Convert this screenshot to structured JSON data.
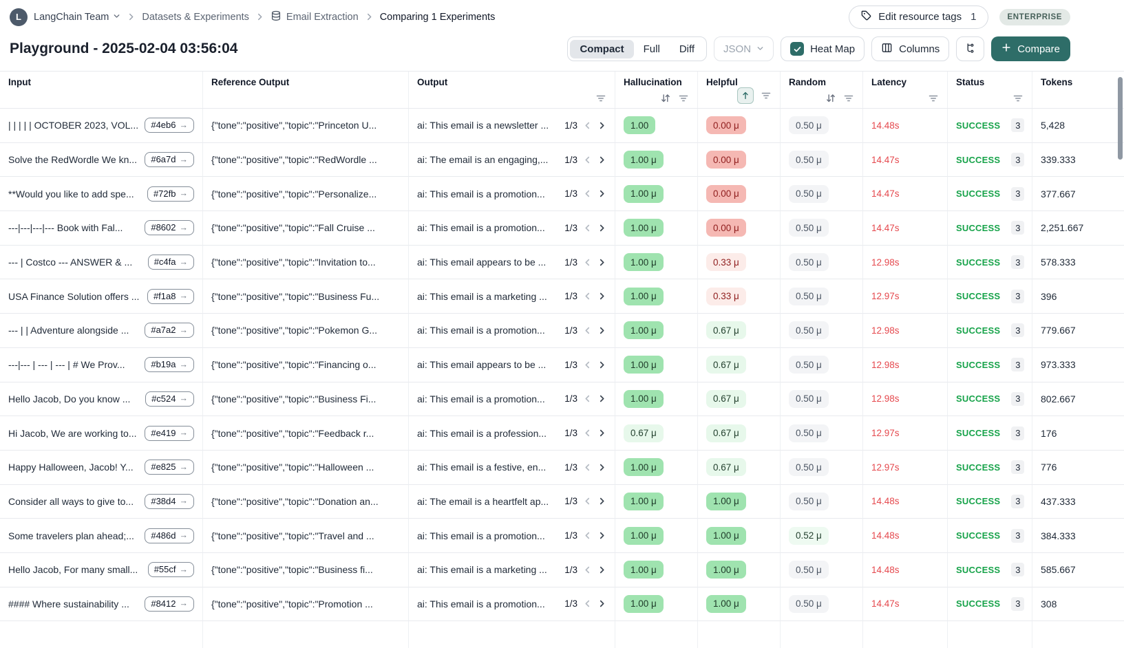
{
  "breadcrumb": {
    "team": "LangChain Team",
    "items": [
      "Datasets & Experiments",
      "Email Extraction",
      "Comparing 1 Experiments"
    ]
  },
  "header": {
    "edit_tags_label": "Edit resource tags",
    "edit_tags_count": "1",
    "enterprise_badge": "ENTERPRISE",
    "title": "Playground - 2025-02-04 03:56:04"
  },
  "toolbar": {
    "view_modes": [
      "Compact",
      "Full",
      "Diff"
    ],
    "active_view_mode": "Compact",
    "format_dropdown": "JSON",
    "heatmap_label": "Heat Map",
    "heatmap_checked": true,
    "columns_label": "Columns",
    "compare_label": "Compare"
  },
  "colors": {
    "accent_teal": "#2e6d68",
    "success_green": "#17a34a",
    "latency_red": "#e5484d",
    "heat_green": "#9fe3af",
    "heat_light_green": "#e7f8eb",
    "heat_red": "#f5b8b3",
    "heat_light_red": "#fcece9",
    "neutral_badge": "#f3f4f6",
    "enterprise_bg": "#e3e9e6"
  },
  "table": {
    "pagination_label": "1/3",
    "columns": [
      {
        "label": "Input",
        "icons": []
      },
      {
        "label": "Reference Output",
        "icons": []
      },
      {
        "label": "Output",
        "icons": [
          "filter-icon"
        ]
      },
      {
        "label": "Hallucination",
        "icons": [
          "sort-icon",
          "filter-icon"
        ]
      },
      {
        "label": "Helpful",
        "icons": [
          "sort-asc-active-icon",
          "filter-icon"
        ]
      },
      {
        "label": "Random",
        "icons": [
          "sort-icon",
          "filter-icon"
        ]
      },
      {
        "label": "Latency",
        "icons": [
          "filter-icon"
        ]
      },
      {
        "label": "Status",
        "icons": [
          "filter-icon"
        ]
      },
      {
        "label": "Tokens",
        "icons": []
      }
    ],
    "rows": [
      {
        "input": "| | | | | OCTOBER 2023, VOL...",
        "id": "#4eb6",
        "reference": "{\"tone\":\"positive\",\"topic\":\"Princeton U...",
        "output": "ai: This email is a newsletter ...",
        "hallucination": {
          "value": "1.00",
          "tone": "green"
        },
        "helpful": {
          "value": "0.00 μ",
          "tone": "red"
        },
        "random": {
          "value": "0.50 μ",
          "tone": "gray"
        },
        "latency": "14.48s",
        "status": "SUCCESS",
        "status_count": "3",
        "tokens": "5,428"
      },
      {
        "input": "Solve the RedWordle We kn...",
        "id": "#6a7d",
        "reference": "{\"tone\":\"positive\",\"topic\":\"RedWordle ...",
        "output": "ai: The email is an engaging,...",
        "hallucination": {
          "value": "1.00 μ",
          "tone": "green"
        },
        "helpful": {
          "value": "0.00 μ",
          "tone": "red"
        },
        "random": {
          "value": "0.50 μ",
          "tone": "gray"
        },
        "latency": "14.47s",
        "status": "SUCCESS",
        "status_count": "3",
        "tokens": "339.333"
      },
      {
        "input": "**Would you like to add spe...",
        "id": "#72fb",
        "reference": "{\"tone\":\"positive\",\"topic\":\"Personalize...",
        "output": "ai: This email is a promotion...",
        "hallucination": {
          "value": "1.00 μ",
          "tone": "green"
        },
        "helpful": {
          "value": "0.00 μ",
          "tone": "red"
        },
        "random": {
          "value": "0.50 μ",
          "tone": "gray"
        },
        "latency": "14.47s",
        "status": "SUCCESS",
        "status_count": "3",
        "tokens": "377.667"
      },
      {
        "input": "---|---|---|--- Book with Fal...",
        "id": "#8602",
        "reference": "{\"tone\":\"positive\",\"topic\":\"Fall Cruise ...",
        "output": "ai: This email is a promotion...",
        "hallucination": {
          "value": "1.00 μ",
          "tone": "green"
        },
        "helpful": {
          "value": "0.00 μ",
          "tone": "red"
        },
        "random": {
          "value": "0.50 μ",
          "tone": "gray"
        },
        "latency": "14.47s",
        "status": "SUCCESS",
        "status_count": "3",
        "tokens": "2,251.667"
      },
      {
        "input": "--- | Costco --- ANSWER & ...",
        "id": "#c4fa",
        "reference": "{\"tone\":\"positive\",\"topic\":\"Invitation to...",
        "output": "ai: This email appears to be ...",
        "hallucination": {
          "value": "1.00 μ",
          "tone": "green"
        },
        "helpful": {
          "value": "0.33 μ",
          "tone": "lightred"
        },
        "random": {
          "value": "0.50 μ",
          "tone": "gray"
        },
        "latency": "12.98s",
        "status": "SUCCESS",
        "status_count": "3",
        "tokens": "578.333"
      },
      {
        "input": "USA Finance Solution offers ...",
        "id": "#f1a8",
        "reference": "{\"tone\":\"positive\",\"topic\":\"Business Fu...",
        "output": "ai: This email is a marketing ...",
        "hallucination": {
          "value": "1.00 μ",
          "tone": "green"
        },
        "helpful": {
          "value": "0.33 μ",
          "tone": "lightred"
        },
        "random": {
          "value": "0.50 μ",
          "tone": "gray"
        },
        "latency": "12.97s",
        "status": "SUCCESS",
        "status_count": "3",
        "tokens": "396"
      },
      {
        "input": "--- | | Adventure alongside ...",
        "id": "#a7a2",
        "reference": "{\"tone\":\"positive\",\"topic\":\"Pokemon G...",
        "output": "ai: This email is a promotion...",
        "hallucination": {
          "value": "1.00 μ",
          "tone": "green"
        },
        "helpful": {
          "value": "0.67 μ",
          "tone": "lightgreen"
        },
        "random": {
          "value": "0.50 μ",
          "tone": "gray"
        },
        "latency": "12.98s",
        "status": "SUCCESS",
        "status_count": "3",
        "tokens": "779.667"
      },
      {
        "input": "---|--- | --- | --- | # We Prov...",
        "id": "#b19a",
        "reference": "{\"tone\":\"positive\",\"topic\":\"Financing o...",
        "output": "ai: This email appears to be ...",
        "hallucination": {
          "value": "1.00 μ",
          "tone": "green"
        },
        "helpful": {
          "value": "0.67 μ",
          "tone": "lightgreen"
        },
        "random": {
          "value": "0.50 μ",
          "tone": "gray"
        },
        "latency": "12.98s",
        "status": "SUCCESS",
        "status_count": "3",
        "tokens": "973.333"
      },
      {
        "input": "Hello Jacob, Do you know ...",
        "id": "#c524",
        "reference": "{\"tone\":\"positive\",\"topic\":\"Business Fi...",
        "output": "ai: This email is a promotion...",
        "hallucination": {
          "value": "1.00 μ",
          "tone": "green"
        },
        "helpful": {
          "value": "0.67 μ",
          "tone": "lightgreen"
        },
        "random": {
          "value": "0.50 μ",
          "tone": "gray"
        },
        "latency": "12.98s",
        "status": "SUCCESS",
        "status_count": "3",
        "tokens": "802.667"
      },
      {
        "input": "Hi Jacob, We are working to...",
        "id": "#e419",
        "reference": "{\"tone\":\"positive\",\"topic\":\"Feedback r...",
        "output": "ai: This email is a profession...",
        "hallucination": {
          "value": "0.67 μ",
          "tone": "lightgreen"
        },
        "helpful": {
          "value": "0.67 μ",
          "tone": "lightgreen"
        },
        "random": {
          "value": "0.50 μ",
          "tone": "gray"
        },
        "latency": "12.97s",
        "status": "SUCCESS",
        "status_count": "3",
        "tokens": "176"
      },
      {
        "input": "Happy Halloween, Jacob! Y...",
        "id": "#e825",
        "reference": "{\"tone\":\"positive\",\"topic\":\"Halloween ...",
        "output": "ai: This email is a festive, en...",
        "hallucination": {
          "value": "1.00 μ",
          "tone": "green"
        },
        "helpful": {
          "value": "0.67 μ",
          "tone": "lightgreen"
        },
        "random": {
          "value": "0.50 μ",
          "tone": "gray"
        },
        "latency": "12.97s",
        "status": "SUCCESS",
        "status_count": "3",
        "tokens": "776"
      },
      {
        "input": "Consider all ways to give to...",
        "id": "#38d4",
        "reference": "{\"tone\":\"positive\",\"topic\":\"Donation an...",
        "output": "ai: The email is a heartfelt ap...",
        "hallucination": {
          "value": "1.00 μ",
          "tone": "green"
        },
        "helpful": {
          "value": "1.00 μ",
          "tone": "green"
        },
        "random": {
          "value": "0.50 μ",
          "tone": "gray"
        },
        "latency": "14.48s",
        "status": "SUCCESS",
        "status_count": "3",
        "tokens": "437.333"
      },
      {
        "input": "Some travelers plan ahead;...",
        "id": "#486d",
        "reference": "{\"tone\":\"positive\",\"topic\":\"Travel and ...",
        "output": "ai: This email is a promotion...",
        "hallucination": {
          "value": "1.00 μ",
          "tone": "green"
        },
        "helpful": {
          "value": "1.00 μ",
          "tone": "green"
        },
        "random": {
          "value": "0.52 μ",
          "tone": "lightergreen"
        },
        "latency": "14.48s",
        "status": "SUCCESS",
        "status_count": "3",
        "tokens": "384.333"
      },
      {
        "input": "Hello Jacob, For many small...",
        "id": "#55cf",
        "reference": "{\"tone\":\"positive\",\"topic\":\"Business fi...",
        "output": "ai: This email is a marketing ...",
        "hallucination": {
          "value": "1.00 μ",
          "tone": "green"
        },
        "helpful": {
          "value": "1.00 μ",
          "tone": "green"
        },
        "random": {
          "value": "0.50 μ",
          "tone": "gray"
        },
        "latency": "14.48s",
        "status": "SUCCESS",
        "status_count": "3",
        "tokens": "585.667"
      },
      {
        "input": "#### Where sustainability ...",
        "id": "#8412",
        "reference": "{\"tone\":\"positive\",\"topic\":\"Promotion ...",
        "output": "ai: This email is a promotion...",
        "hallucination": {
          "value": "1.00 μ",
          "tone": "green"
        },
        "helpful": {
          "value": "1.00 μ",
          "tone": "green"
        },
        "random": {
          "value": "0.50 μ",
          "tone": "gray"
        },
        "latency": "14.47s",
        "status": "SUCCESS",
        "status_count": "3",
        "tokens": "308"
      }
    ]
  }
}
